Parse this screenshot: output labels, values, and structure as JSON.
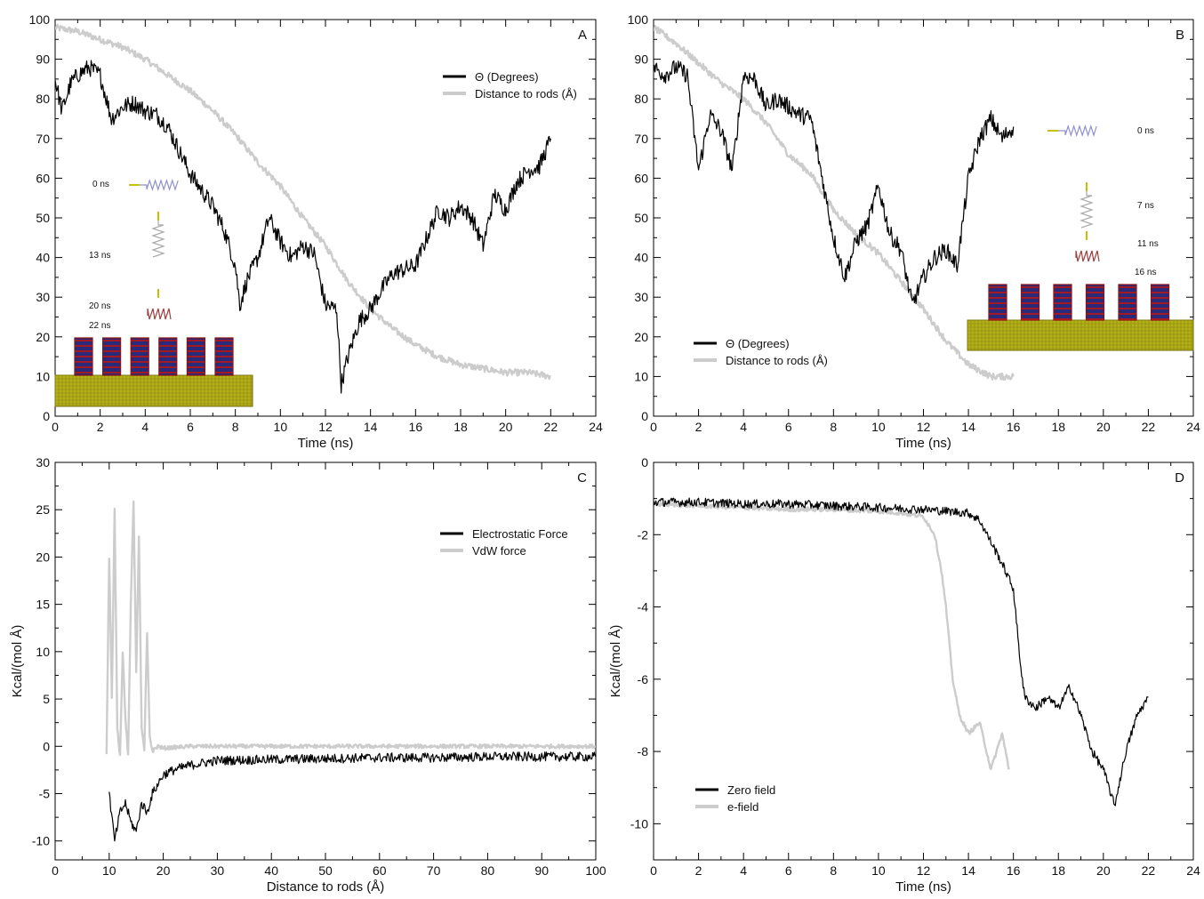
{
  "chart_data": [
    {
      "panel": "A",
      "type": "line",
      "xlabel": "Time (ns)",
      "ylabel": "",
      "xlim": [
        0,
        24
      ],
      "ylim": [
        0,
        100
      ],
      "xticks": [
        0,
        2,
        4,
        6,
        8,
        10,
        12,
        14,
        16,
        18,
        20,
        22,
        24
      ],
      "yticks": [
        0,
        10,
        20,
        30,
        40,
        50,
        60,
        70,
        80,
        90,
        100
      ],
      "legend_position": "top-right",
      "series": [
        {
          "name": "Θ (Degrees)",
          "color": "#000000",
          "points": [
            [
              0,
              85
            ],
            [
              0.3,
              77
            ],
            [
              0.7,
              84
            ],
            [
              1,
              86
            ],
            [
              1.5,
              88
            ],
            [
              2,
              86
            ],
            [
              2.5,
              75
            ],
            [
              3,
              78
            ],
            [
              3.5,
              79
            ],
            [
              4,
              77
            ],
            [
              4.5,
              76
            ],
            [
              5,
              73
            ],
            [
              5.5,
              67
            ],
            [
              6,
              61
            ],
            [
              6.5,
              57
            ],
            [
              7,
              53
            ],
            [
              7.5,
              47
            ],
            [
              8,
              38
            ],
            [
              8.2,
              28
            ],
            [
              8.5,
              34
            ],
            [
              9,
              40
            ],
            [
              9.5,
              50
            ],
            [
              10,
              44
            ],
            [
              10.5,
              40
            ],
            [
              11,
              43
            ],
            [
              11.5,
              41
            ],
            [
              12,
              28
            ],
            [
              12.5,
              27
            ],
            [
              12.7,
              8
            ],
            [
              13,
              15
            ],
            [
              13.5,
              24
            ],
            [
              14,
              27
            ],
            [
              14.5,
              32
            ],
            [
              15,
              36
            ],
            [
              15.5,
              37
            ],
            [
              16,
              38
            ],
            [
              16.5,
              45
            ],
            [
              17,
              52
            ],
            [
              17.5,
              50
            ],
            [
              18,
              53
            ],
            [
              18.5,
              50
            ],
            [
              19,
              43
            ],
            [
              19.5,
              56
            ],
            [
              20,
              52
            ],
            [
              20.5,
              59
            ],
            [
              21,
              62
            ],
            [
              21.5,
              63
            ],
            [
              22,
              70
            ]
          ]
        },
        {
          "name": "Distance to rods (Å)",
          "color": "#cccccc",
          "points": [
            [
              0,
              98
            ],
            [
              1,
              97
            ],
            [
              2,
              95
            ],
            [
              3,
              93
            ],
            [
              4,
              90
            ],
            [
              5,
              86
            ],
            [
              6,
              82
            ],
            [
              7,
              77
            ],
            [
              8,
              71
            ],
            [
              9,
              64
            ],
            [
              10,
              58
            ],
            [
              11,
              50
            ],
            [
              12,
              43
            ],
            [
              13,
              34
            ],
            [
              14,
              27
            ],
            [
              15,
              22
            ],
            [
              16,
              18
            ],
            [
              17,
              15
            ],
            [
              18,
              13
            ],
            [
              19,
              12
            ],
            [
              20,
              11
            ],
            [
              21,
              11
            ],
            [
              22,
              10
            ]
          ]
        }
      ],
      "annotations": [
        "0 ns",
        "13 ns",
        "20 ns",
        "22 ns"
      ]
    },
    {
      "panel": "B",
      "type": "line",
      "xlabel": "Time (ns)",
      "ylabel": "",
      "xlim": [
        0,
        24
      ],
      "ylim": [
        0,
        100
      ],
      "xticks": [
        0,
        2,
        4,
        6,
        8,
        10,
        12,
        14,
        16,
        18,
        20,
        22,
        24
      ],
      "yticks": [
        0,
        10,
        20,
        30,
        40,
        50,
        60,
        70,
        80,
        90,
        100
      ],
      "legend_position": "bottom-left",
      "series": [
        {
          "name": "Θ (Degrees)",
          "color": "#000000",
          "points": [
            [
              0,
              88
            ],
            [
              0.5,
              86
            ],
            [
              1,
              88
            ],
            [
              1.5,
              86
            ],
            [
              2,
              62
            ],
            [
              2.5,
              76
            ],
            [
              3,
              72
            ],
            [
              3.5,
              62
            ],
            [
              4,
              86
            ],
            [
              4.5,
              85
            ],
            [
              5,
              78
            ],
            [
              5.5,
              80
            ],
            [
              6,
              78
            ],
            [
              6.5,
              76
            ],
            [
              7,
              75
            ],
            [
              7.5,
              60
            ],
            [
              8,
              45
            ],
            [
              8.5,
              35
            ],
            [
              9,
              44
            ],
            [
              9.5,
              48
            ],
            [
              10,
              58
            ],
            [
              10.5,
              46
            ],
            [
              11,
              42
            ],
            [
              11.5,
              28
            ],
            [
              12,
              35
            ],
            [
              12.5,
              40
            ],
            [
              13,
              42
            ],
            [
              13.5,
              38
            ],
            [
              14,
              60
            ],
            [
              14.5,
              70
            ],
            [
              15,
              75
            ],
            [
              15.5,
              70
            ],
            [
              16,
              73
            ]
          ]
        },
        {
          "name": "Distance to rods (Å)",
          "color": "#cccccc",
          "points": [
            [
              0,
              98
            ],
            [
              1,
              94
            ],
            [
              2,
              89
            ],
            [
              3,
              84
            ],
            [
              4,
              80
            ],
            [
              5,
              74
            ],
            [
              6,
              66
            ],
            [
              7,
              61
            ],
            [
              8,
              52
            ],
            [
              9,
              46
            ],
            [
              10,
              41
            ],
            [
              11,
              34
            ],
            [
              12,
              27
            ],
            [
              13,
              19
            ],
            [
              14,
              13
            ],
            [
              15,
              10
            ],
            [
              16,
              10
            ]
          ]
        }
      ],
      "annotations": [
        "0 ns",
        "7 ns",
        "11 ns",
        "16 ns"
      ]
    },
    {
      "panel": "C",
      "type": "line",
      "xlabel": "Distance to rods (Å)",
      "ylabel": "Kcal/(mol Å)",
      "xlim": [
        0,
        100
      ],
      "ylim": [
        -12,
        30
      ],
      "xticks": [
        0,
        10,
        20,
        30,
        40,
        50,
        60,
        70,
        80,
        90,
        100
      ],
      "yticks": [
        -10,
        -5,
        0,
        5,
        10,
        15,
        20,
        25,
        30
      ],
      "legend_position": "top-right",
      "series": [
        {
          "name": "Electrostatic Force",
          "color": "#000000",
          "points": [
            [
              10,
              -5
            ],
            [
              11,
              -10
            ],
            [
              12,
              -7
            ],
            [
              13,
              -6
            ],
            [
              14,
              -8
            ],
            [
              15,
              -9
            ],
            [
              16,
              -6
            ],
            [
              17,
              -7
            ],
            [
              18,
              -5
            ],
            [
              19,
              -4
            ],
            [
              20,
              -3
            ],
            [
              22,
              -2.5
            ],
            [
              25,
              -2
            ],
            [
              28,
              -1.7
            ],
            [
              30,
              -1.5
            ],
            [
              40,
              -1.4
            ],
            [
              50,
              -1.3
            ],
            [
              60,
              -1.2
            ],
            [
              70,
              -1.2
            ],
            [
              80,
              -1.1
            ],
            [
              90,
              -1.1
            ],
            [
              100,
              -1.1
            ]
          ]
        },
        {
          "name": "VdW force",
          "color": "#cccccc",
          "points": [
            [
              9.5,
              -1
            ],
            [
              10,
              20
            ],
            [
              10.5,
              5
            ],
            [
              11,
              25
            ],
            [
              11.5,
              2
            ],
            [
              12,
              -1
            ],
            [
              12.5,
              10
            ],
            [
              13,
              3
            ],
            [
              13.5,
              -1
            ],
            [
              14,
              15
            ],
            [
              14.5,
              26
            ],
            [
              15,
              8
            ],
            [
              15.5,
              22
            ],
            [
              16,
              2
            ],
            [
              16.5,
              -0.5
            ],
            [
              17,
              12
            ],
            [
              17.5,
              1
            ],
            [
              18,
              -0.5
            ],
            [
              19,
              0
            ],
            [
              20,
              -0.2
            ],
            [
              25,
              0
            ],
            [
              30,
              0
            ],
            [
              40,
              0
            ],
            [
              60,
              0
            ],
            [
              80,
              0
            ],
            [
              100,
              0
            ]
          ]
        }
      ]
    },
    {
      "panel": "D",
      "type": "line",
      "xlabel": "Time (ns)",
      "ylabel": "Kcal/(mol Å)",
      "xlim": [
        0,
        24
      ],
      "ylim": [
        -11,
        0
      ],
      "xticks": [
        0,
        2,
        4,
        6,
        8,
        10,
        12,
        14,
        16,
        18,
        20,
        22,
        24
      ],
      "yticks": [
        -10,
        -8,
        -6,
        -4,
        -2,
        0
      ],
      "legend_position": "bottom-left",
      "series": [
        {
          "name": "Zero field",
          "color": "#000000",
          "points": [
            [
              0,
              -1.1
            ],
            [
              2,
              -1.1
            ],
            [
              4,
              -1.15
            ],
            [
              6,
              -1.15
            ],
            [
              8,
              -1.2
            ],
            [
              10,
              -1.25
            ],
            [
              12,
              -1.3
            ],
            [
              13,
              -1.35
            ],
            [
              14,
              -1.4
            ],
            [
              14.5,
              -1.6
            ],
            [
              15,
              -2.2
            ],
            [
              15.5,
              -2.8
            ],
            [
              16,
              -3.5
            ],
            [
              16.3,
              -5.5
            ],
            [
              16.5,
              -6.5
            ],
            [
              17,
              -6.8
            ],
            [
              17.5,
              -6.5
            ],
            [
              18,
              -6.8
            ],
            [
              18.5,
              -6.2
            ],
            [
              19,
              -7
            ],
            [
              19.5,
              -8
            ],
            [
              20,
              -8.5
            ],
            [
              20.5,
              -9.5
            ],
            [
              21,
              -8
            ],
            [
              21.5,
              -7
            ],
            [
              22,
              -6.5
            ]
          ]
        },
        {
          "name": "e-field",
          "color": "#cccccc",
          "points": [
            [
              0,
              -1.15
            ],
            [
              2,
              -1.2
            ],
            [
              4,
              -1.25
            ],
            [
              6,
              -1.3
            ],
            [
              8,
              -1.3
            ],
            [
              10,
              -1.35
            ],
            [
              11,
              -1.4
            ],
            [
              12,
              -1.5
            ],
            [
              12.5,
              -2
            ],
            [
              12.8,
              -3
            ],
            [
              13,
              -4
            ],
            [
              13.3,
              -6
            ],
            [
              13.6,
              -7
            ],
            [
              14,
              -7.5
            ],
            [
              14.5,
              -7.2
            ],
            [
              15,
              -8.5
            ],
            [
              15.5,
              -7.5
            ],
            [
              15.8,
              -8.5
            ]
          ]
        }
      ]
    }
  ]
}
